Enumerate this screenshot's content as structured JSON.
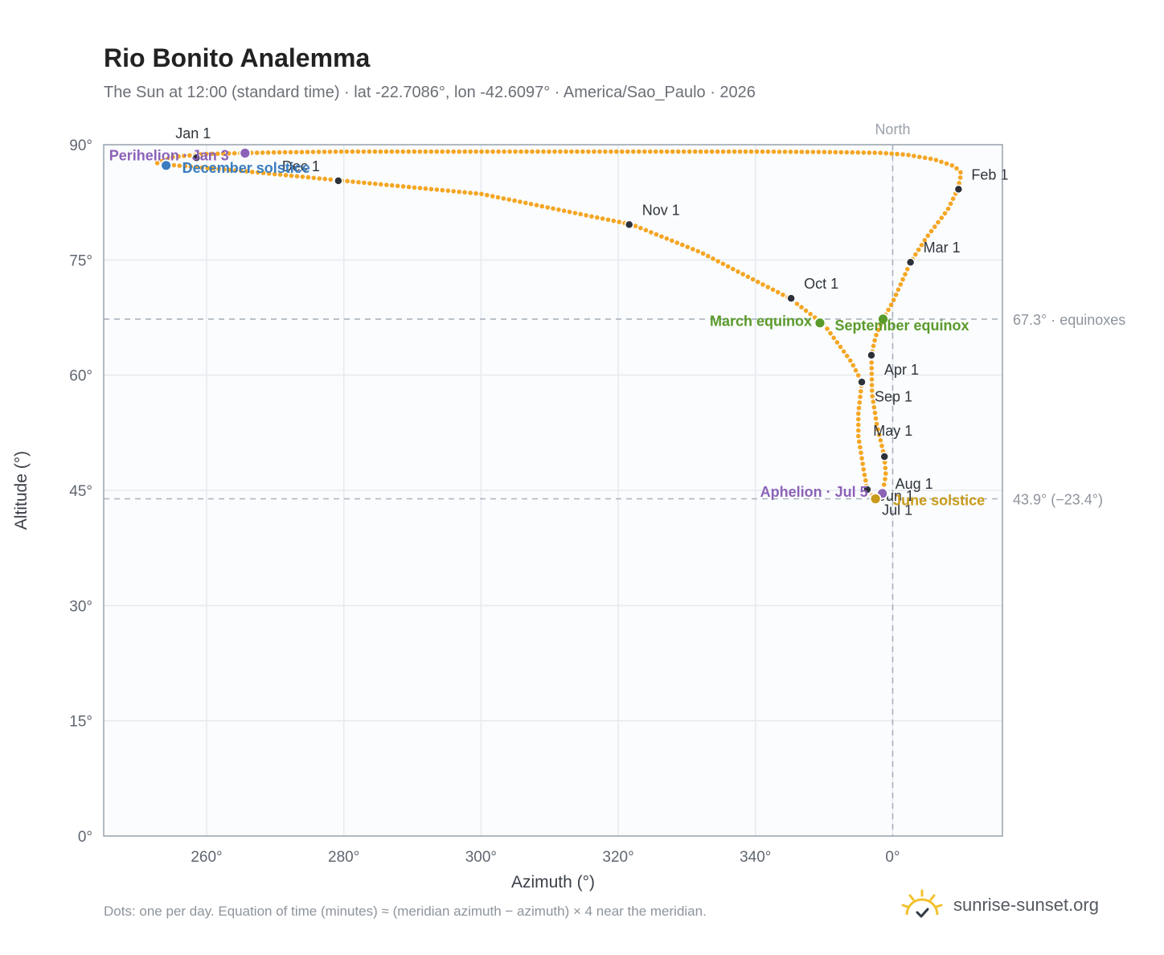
{
  "header": {
    "title": "Rio Bonito Analemma",
    "subtitle": "The Sun at 12:00 (standard time) · lat -22.7086°, lon -42.6097° · America/Sao_Paulo · 2026"
  },
  "footer": {
    "note": "Dots: one per day. Equation of time (minutes) ≈ (meridian azimuth − azimuth) × 4 near the meridian.",
    "brand": "sunrise-sunset.org"
  },
  "colors": {
    "curve": "#f5a623",
    "month_marker": "#2d323a",
    "solstice_june": "#c99a1c",
    "solstice_december": "#3a7dc0",
    "equinox": "#5a9a2a",
    "apsis": "#8c62b8",
    "reference_line": "#aab2bd",
    "plot_background": "#fafcfe",
    "grid": "#e6eaee",
    "frame": "#9aa3ae"
  },
  "chart_data": {
    "type": "scatter",
    "title": "Rio Bonito Analemma",
    "xlabel": "Azimuth (°)",
    "ylabel": "Altitude (°)",
    "xlim": [
      -115,
      16
    ],
    "ylim": [
      0,
      90
    ],
    "x_ticks": [
      -100,
      -80,
      -60,
      -40,
      -20,
      0
    ],
    "x_tick_labels": [
      "260°",
      "280°",
      "300°",
      "320°",
      "340°",
      "0°"
    ],
    "y_ticks": [
      0,
      15,
      30,
      45,
      60,
      75,
      90
    ],
    "y_tick_labels": [
      "0°",
      "15°",
      "30°",
      "45°",
      "60°",
      "75°",
      "90°"
    ],
    "grid": true,
    "meridian": {
      "azimuth": 0,
      "label": "North"
    },
    "reference_lines": [
      {
        "altitude": 67.3,
        "label": "67.3° · equinoxes"
      },
      {
        "altitude": 43.9,
        "label": "43.9° (−23.4°)"
      }
    ],
    "daily_path": [
      [
        -107.2,
        87.6
      ],
      [
        -104.5,
        87.3
      ],
      [
        -95,
        86.6
      ],
      [
        -80,
        85.3
      ],
      [
        -60,
        83.6
      ],
      [
        -38,
        79.6
      ],
      [
        -28,
        76.0
      ],
      [
        -20,
        72.3
      ],
      [
        -15,
        70.0
      ],
      [
        -10,
        66.6
      ],
      [
        -6,
        61.7
      ],
      [
        -4.5,
        59.1
      ],
      [
        -5,
        55.0
      ],
      [
        -5,
        52.0
      ],
      [
        -4.2,
        47.5
      ],
      [
        -3.7,
        45.1
      ],
      [
        -2.5,
        43.9
      ],
      [
        -1.5,
        44.6
      ],
      [
        -1.0,
        47.0
      ],
      [
        -1.2,
        49.4
      ],
      [
        -2.3,
        53.5
      ],
      [
        -3.0,
        57.5
      ],
      [
        -3.1,
        62.6
      ],
      [
        -2.5,
        65.0
      ],
      [
        -1.4,
        67.3
      ],
      [
        0,
        69.5
      ],
      [
        2.6,
        74.7
      ],
      [
        5,
        78.0
      ],
      [
        8,
        81.5
      ],
      [
        9.5,
        84.2
      ],
      [
        10,
        86.3
      ],
      [
        9.0,
        87.2
      ],
      [
        6,
        88.1
      ],
      [
        2,
        88.7
      ],
      [
        -2,
        88.95
      ],
      [
        -6,
        89.0
      ],
      [
        -10,
        89.05
      ],
      [
        -20,
        89.1
      ],
      [
        -30,
        89.1
      ],
      [
        -40,
        89.1
      ],
      [
        -60,
        89.1
      ],
      [
        -80,
        89.1
      ],
      [
        -90,
        89.0
      ],
      [
        -100,
        88.8
      ],
      [
        -105,
        88.4
      ],
      [
        -107.2,
        87.6
      ]
    ],
    "month_markers": [
      {
        "label": "Jan 1",
        "azimuth": -101.5,
        "altitude": 88.3
      },
      {
        "label": "Feb 1",
        "azimuth": 9.6,
        "altitude": 84.2
      },
      {
        "label": "Mar 1",
        "azimuth": 2.6,
        "altitude": 74.7
      },
      {
        "label": "Apr 1",
        "azimuth": -3.1,
        "altitude": 62.6
      },
      {
        "label": "May 1",
        "azimuth": -1.2,
        "altitude": 49.4
      },
      {
        "label": "Jun 1",
        "azimuth": -3.7,
        "altitude": 45.1
      },
      {
        "label": "Jul 1",
        "azimuth": -2.5,
        "altitude": 43.9
      },
      {
        "label": "Aug 1",
        "azimuth": -1.5,
        "altitude": 44.6
      },
      {
        "label": "Sep 1",
        "azimuth": -4.5,
        "altitude": 59.1
      },
      {
        "label": "Oct 1",
        "azimuth": -14.8,
        "altitude": 70.0
      },
      {
        "label": "Nov 1",
        "azimuth": -38.4,
        "altitude": 79.6
      },
      {
        "label": "Dec 1",
        "azimuth": -80.8,
        "altitude": 85.3
      }
    ],
    "events": [
      {
        "label": "Perihelion · Jan 3",
        "kind": "apsis",
        "azimuth": -94.4,
        "altitude": 88.9
      },
      {
        "label": "December solstice",
        "kind": "solstice_december",
        "azimuth": -105.9,
        "altitude": 87.3
      },
      {
        "label": "March equinox",
        "kind": "equinox",
        "azimuth": -10.6,
        "altitude": 66.8
      },
      {
        "label": "September equinox",
        "kind": "equinox",
        "azimuth": -1.4,
        "altitude": 67.3
      },
      {
        "label": "Aphelion · Jul 5",
        "kind": "apsis",
        "azimuth": -1.5,
        "altitude": 44.6
      },
      {
        "label": "June solstice",
        "kind": "solstice_june",
        "azimuth": -2.5,
        "altitude": 43.9
      }
    ]
  }
}
